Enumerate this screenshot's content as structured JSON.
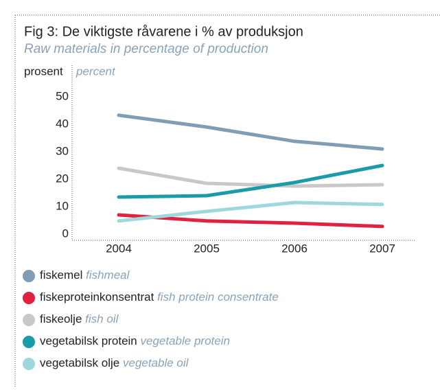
{
  "chart_data": {
    "type": "line",
    "title": "Fig 3: De viktigste råvarene i % av produksjon",
    "subtitle": "Raw materials in percentage of production",
    "y_label": "prosent",
    "y_label_en": "percent",
    "categories": [
      "2004",
      "2005",
      "2006",
      "2007"
    ],
    "ylim": [
      0,
      50
    ],
    "yticks": [
      0,
      10,
      20,
      30,
      40,
      50
    ],
    "series": [
      {
        "name": "fiskemel",
        "name_en": "fishmeal",
        "color": "#7f9db5",
        "values": [
          43.3,
          39,
          33.8,
          31
        ]
      },
      {
        "name": "fiskeproteinkonsentrat",
        "name_en": "fish protein consentrate",
        "color": "#e0213f",
        "values": [
          7,
          4.8,
          4,
          2.8
        ]
      },
      {
        "name": "fiskeolje",
        "name_en": "fish oil",
        "color": "#c8c8c8",
        "values": [
          24,
          18.5,
          17.5,
          18
        ]
      },
      {
        "name": "vegetabilsk protein",
        "name_en": "vegetable protein",
        "color": "#1a9ba8",
        "values": [
          13.5,
          14,
          18.8,
          25
        ]
      },
      {
        "name": "vegetabilsk olje",
        "name_en": "vegetable oil",
        "color": "#9ed8dc",
        "values": [
          4.8,
          8.3,
          11.5,
          10.8
        ]
      }
    ]
  }
}
